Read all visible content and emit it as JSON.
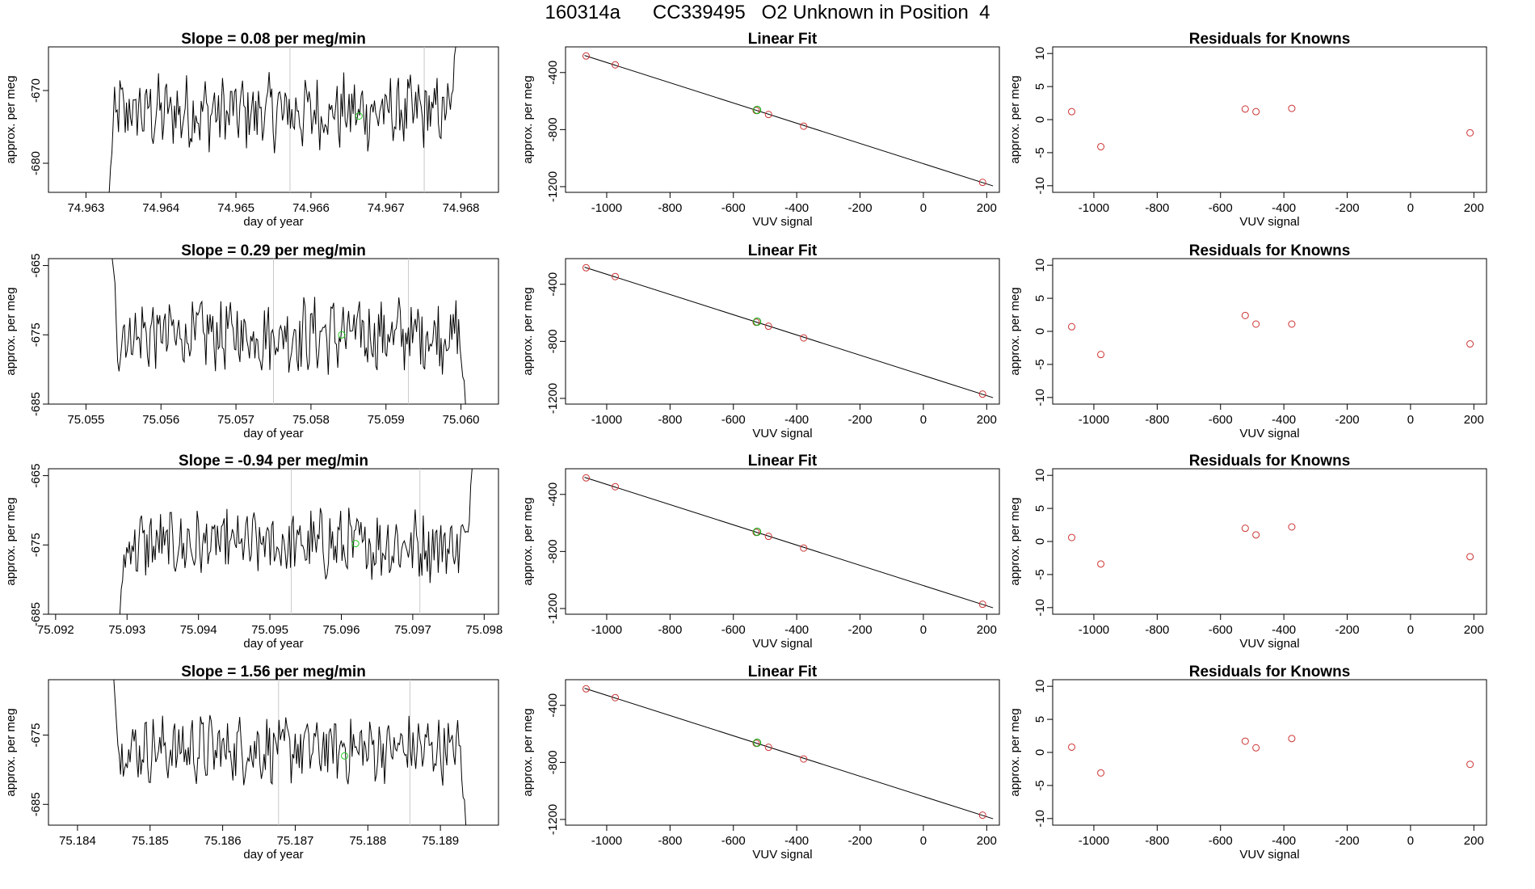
{
  "page_title": "160314a      CC339495   O2 Unknown in Position  4",
  "chart_data": [
    {
      "type": "line",
      "title": "Slope =  0.08  per meg/min",
      "xlabel": "day of year",
      "ylabel": "approx. per meg",
      "xlim": [
        74.9625,
        74.9685
      ],
      "ylim": [
        -684,
        -664
      ],
      "xticks": [
        "74.963",
        "74.964",
        "74.965",
        "74.966",
        "74.967",
        "74.968"
      ],
      "yticks": [
        "-680",
        "-670"
      ],
      "vlines": [
        74.96572,
        74.96751
      ],
      "center": -673,
      "noise": 4.2,
      "start": [
        74.96331,
        -684
      ],
      "end": [
        74.96793,
        -664
      ],
      "highlight_point": {
        "x": 74.96664,
        "y": -673.5,
        "color": "#22cc22"
      }
    },
    {
      "type": "scatter",
      "title": "Linear Fit",
      "xlabel": "VUV signal",
      "ylabel": "approx. per meg",
      "xlim": [
        -1130,
        240
      ],
      "ylim": [
        -1240,
        -220
      ],
      "xticks": [
        "-1000",
        "-800",
        "-600",
        "-400",
        "-200",
        "0",
        "200"
      ],
      "yticks": [
        "-1200",
        "-800",
        "-400"
      ],
      "fit_line": {
        "x": [
          -1070,
          220
        ],
        "y": [
          -280,
          -1195
        ]
      },
      "points": [
        {
          "x": -1065,
          "y": -284
        },
        {
          "x": -973,
          "y": -346
        },
        {
          "x": -528,
          "y": -666
        },
        {
          "x": -489,
          "y": -694
        },
        {
          "x": -378,
          "y": -776
        },
        {
          "x": 187,
          "y": -1170
        }
      ],
      "unknown_point": {
        "x": -525,
        "y": -662,
        "color": "#22aa22"
      },
      "point_color": "#cc3333"
    },
    {
      "type": "scatter",
      "title": "Residuals for Knowns",
      "xlabel": "VUV signal",
      "ylabel": "approx. per meg",
      "xlim": [
        -1130,
        240
      ],
      "ylim": [
        -11,
        11
      ],
      "xticks": [
        "-1000",
        "-800",
        "-600",
        "-400",
        "-200",
        "0",
        "200"
      ],
      "yticks": [
        "-10",
        "-5",
        "0",
        "5",
        "10"
      ],
      "points": [
        {
          "x": -1070,
          "y": 1.2
        },
        {
          "x": -978,
          "y": -4.1
        },
        {
          "x": -522,
          "y": 1.6
        },
        {
          "x": -488,
          "y": 1.2
        },
        {
          "x": -375,
          "y": 1.7
        },
        {
          "x": 188,
          "y": -2.0
        }
      ],
      "point_color": "#cc3333"
    },
    {
      "type": "line",
      "title": "Slope =  0.29  per meg/min",
      "xlabel": "day of year",
      "ylabel": "approx. per meg",
      "xlim": [
        75.0545,
        75.0605
      ],
      "ylim": [
        -685,
        -664
      ],
      "xticks": [
        "75.055",
        "75.056",
        "75.057",
        "75.058",
        "75.059",
        "75.060"
      ],
      "yticks": [
        "-685",
        "-675",
        "-665"
      ],
      "vlines": [
        75.0575,
        75.0593
      ],
      "center": -675,
      "noise": 4.5,
      "start": [
        75.05535,
        -664
      ],
      "end": [
        75.06006,
        -685
      ],
      "highlight_point": {
        "x": 75.05841,
        "y": -675,
        "color": "#22cc22"
      }
    },
    {
      "type": "scatter",
      "title": "Linear Fit",
      "xlabel": "VUV signal",
      "ylabel": "approx. per meg",
      "xlim": [
        -1130,
        240
      ],
      "ylim": [
        -1240,
        -220
      ],
      "xticks": [
        "-1000",
        "-800",
        "-600",
        "-400",
        "-200",
        "0",
        "200"
      ],
      "yticks": [
        "-1200",
        "-800",
        "-400"
      ],
      "fit_line": {
        "x": [
          -1070,
          220
        ],
        "y": [
          -280,
          -1195
        ]
      },
      "points": [
        {
          "x": -1065,
          "y": -284
        },
        {
          "x": -973,
          "y": -346
        },
        {
          "x": -528,
          "y": -666
        },
        {
          "x": -489,
          "y": -694
        },
        {
          "x": -378,
          "y": -776
        },
        {
          "x": 187,
          "y": -1170
        }
      ],
      "unknown_point": {
        "x": -525,
        "y": -662,
        "color": "#22aa22"
      },
      "point_color": "#cc3333"
    },
    {
      "type": "scatter",
      "title": "Residuals for Knowns",
      "xlabel": "VUV signal",
      "ylabel": "approx. per meg",
      "xlim": [
        -1130,
        240
      ],
      "ylim": [
        -11,
        11
      ],
      "xticks": [
        "-1000",
        "-800",
        "-600",
        "-400",
        "-200",
        "0",
        "200"
      ],
      "yticks": [
        "-10",
        "-5",
        "0",
        "5",
        "10"
      ],
      "points": [
        {
          "x": -1070,
          "y": 0.7
        },
        {
          "x": -978,
          "y": -3.5
        },
        {
          "x": -522,
          "y": 2.4
        },
        {
          "x": -488,
          "y": 1.1
        },
        {
          "x": -375,
          "y": 1.1
        },
        {
          "x": 188,
          "y": -1.9
        }
      ],
      "point_color": "#cc3333"
    },
    {
      "type": "line",
      "title": "Slope =  -0.94  per meg/min",
      "xlabel": "day of year",
      "ylabel": "approx. per meg",
      "xlim": [
        75.0919,
        75.0982
      ],
      "ylim": [
        -685,
        -664
      ],
      "xticks": [
        "75.092",
        "75.093",
        "75.094",
        "75.095",
        "75.096",
        "75.097",
        "75.098"
      ],
      "yticks": [
        "-685",
        "-675",
        "-665"
      ],
      "vlines": [
        75.0953,
        75.0971
      ],
      "center": -675,
      "noise": 4.2,
      "start": [
        75.0929,
        -685
      ],
      "end": [
        75.09783,
        -664
      ],
      "highlight_point": {
        "x": 75.0962,
        "y": -674.8,
        "color": "#22cc22"
      }
    },
    {
      "type": "scatter",
      "title": "Linear Fit",
      "xlabel": "VUV signal",
      "ylabel": "approx. per meg",
      "xlim": [
        -1130,
        240
      ],
      "ylim": [
        -1240,
        -220
      ],
      "xticks": [
        "-1000",
        "-800",
        "-600",
        "-400",
        "-200",
        "0",
        "200"
      ],
      "yticks": [
        "-1200",
        "-800",
        "-400"
      ],
      "fit_line": {
        "x": [
          -1070,
          220
        ],
        "y": [
          -280,
          -1195
        ]
      },
      "points": [
        {
          "x": -1065,
          "y": -284
        },
        {
          "x": -973,
          "y": -346
        },
        {
          "x": -528,
          "y": -666
        },
        {
          "x": -489,
          "y": -694
        },
        {
          "x": -378,
          "y": -776
        },
        {
          "x": 187,
          "y": -1170
        }
      ],
      "unknown_point": {
        "x": -525,
        "y": -662,
        "color": "#22aa22"
      },
      "point_color": "#cc3333"
    },
    {
      "type": "scatter",
      "title": "Residuals for Knowns",
      "xlabel": "VUV signal",
      "ylabel": "approx. per meg",
      "xlim": [
        -1130,
        240
      ],
      "ylim": [
        -11,
        11
      ],
      "xticks": [
        "-1000",
        "-800",
        "-600",
        "-400",
        "-200",
        "0",
        "200"
      ],
      "yticks": [
        "-10",
        "-5",
        "0",
        "5",
        "10"
      ],
      "points": [
        {
          "x": -1070,
          "y": 0.6
        },
        {
          "x": -978,
          "y": -3.4
        },
        {
          "x": -522,
          "y": 2.0
        },
        {
          "x": -488,
          "y": 1.0
        },
        {
          "x": -375,
          "y": 2.2
        },
        {
          "x": 188,
          "y": -2.3
        }
      ],
      "point_color": "#cc3333"
    },
    {
      "type": "line",
      "title": "Slope =  1.56  per meg/min",
      "xlabel": "day of year",
      "ylabel": "approx. per meg",
      "xlim": [
        75.1836,
        75.1898
      ],
      "ylim": [
        -688,
        -667
      ],
      "xticks": [
        "75.184",
        "75.185",
        "75.186",
        "75.187",
        "75.188",
        "75.189"
      ],
      "yticks": [
        "-685",
        "-675"
      ],
      "vlines": [
        75.18677,
        75.18858
      ],
      "center": -677,
      "noise": 4.0,
      "start": [
        75.1845,
        -667
      ],
      "end": [
        75.18935,
        -688
      ],
      "highlight_point": {
        "x": 75.18768,
        "y": -678,
        "color": "#22cc22"
      }
    },
    {
      "type": "scatter",
      "title": "Linear Fit",
      "xlabel": "VUV signal",
      "ylabel": "approx. per meg",
      "xlim": [
        -1130,
        240
      ],
      "ylim": [
        -1240,
        -220
      ],
      "xticks": [
        "-1000",
        "-800",
        "-600",
        "-400",
        "-200",
        "0",
        "200"
      ],
      "yticks": [
        "-1200",
        "-800",
        "-400"
      ],
      "fit_line": {
        "x": [
          -1070,
          220
        ],
        "y": [
          -280,
          -1195
        ]
      },
      "points": [
        {
          "x": -1065,
          "y": -284
        },
        {
          "x": -973,
          "y": -346
        },
        {
          "x": -528,
          "y": -666
        },
        {
          "x": -489,
          "y": -694
        },
        {
          "x": -378,
          "y": -776
        },
        {
          "x": 187,
          "y": -1170
        }
      ],
      "unknown_point": {
        "x": -525,
        "y": -662,
        "color": "#22aa22"
      },
      "point_color": "#cc3333"
    },
    {
      "type": "scatter",
      "title": "Residuals for Knowns",
      "xlabel": "VUV signal",
      "ylabel": "approx. per meg",
      "xlim": [
        -1130,
        240
      ],
      "ylim": [
        -11,
        11
      ],
      "xticks": [
        "-1000",
        "-800",
        "-600",
        "-400",
        "-200",
        "0",
        "200"
      ],
      "yticks": [
        "-10",
        "-5",
        "0",
        "5",
        "10"
      ],
      "points": [
        {
          "x": -1070,
          "y": 0.8
        },
        {
          "x": -978,
          "y": -3.1
        },
        {
          "x": -522,
          "y": 1.7
        },
        {
          "x": -488,
          "y": 0.7
        },
        {
          "x": -375,
          "y": 2.1
        },
        {
          "x": 188,
          "y": -1.8
        }
      ],
      "point_color": "#cc3333"
    }
  ]
}
